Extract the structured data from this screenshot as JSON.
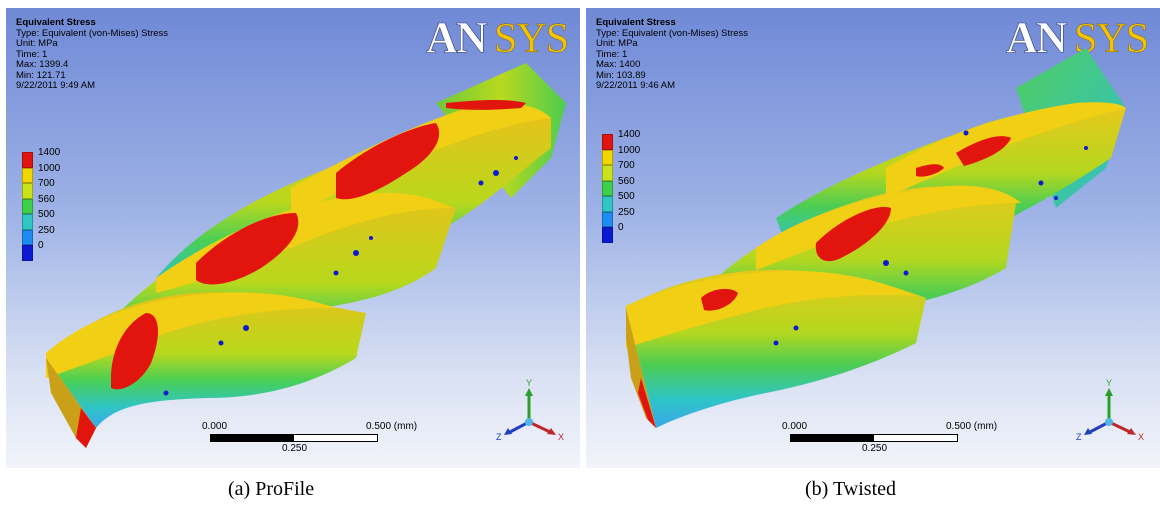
{
  "panels": [
    {
      "logo": "ANSYS",
      "info": {
        "title": "Equivalent Stress",
        "type": "Type: Equivalent (von-Mises) Stress",
        "unit": "Unit: MPa",
        "time": "Time: 1",
        "max": "Max: 1399.4",
        "min": "Min: 121.71",
        "date": "9/22/2011 9:49 AM"
      },
      "legend": [
        "1400",
        "1000",
        "700",
        "560",
        "500",
        "250",
        "0"
      ],
      "scale": {
        "start": "0.000",
        "end": "0.500 (mm)",
        "mid": "0.250"
      },
      "axes": {
        "x": "X",
        "y": "Y",
        "z": "Z"
      },
      "caption": "(a) ProFile"
    },
    {
      "logo": "ANSYS",
      "info": {
        "title": "Equivalent Stress",
        "type": "Type: Equivalent (von-Mises) Stress",
        "unit": "Unit: MPa",
        "time": "Time: 1",
        "max": "Max: 1400",
        "min": "Min: 103.89",
        "date": "9/22/2011 9:46 AM"
      },
      "legend": [
        "1400",
        "1000",
        "700",
        "560",
        "500",
        "250",
        "0"
      ],
      "scale": {
        "start": "0.000",
        "end": "0.500 (mm)",
        "mid": "0.250"
      },
      "axes": {
        "x": "X",
        "y": "Y",
        "z": "Z"
      },
      "caption": "(b) Twisted"
    }
  ],
  "legend_colors": [
    "#e2140e",
    "#f2d600",
    "#c9e21a",
    "#3fd04a",
    "#30c6c4",
    "#1d8cf2",
    "#0c1ad2"
  ]
}
